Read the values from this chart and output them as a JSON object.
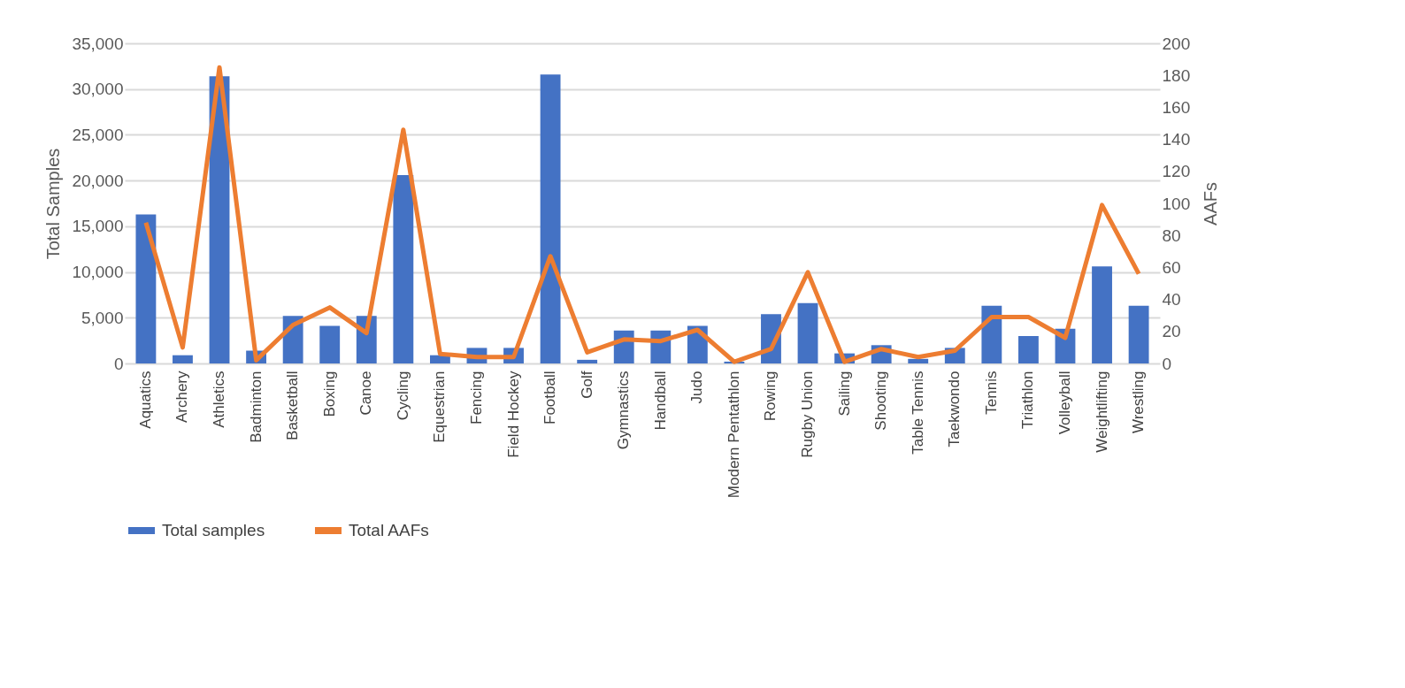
{
  "chart_data": {
    "type": "bar",
    "ylabel": "Total Samples",
    "y2label": "AAFs",
    "categories": [
      "Aquatics",
      "Archery",
      "Athletics",
      "Badminton",
      "Basketball",
      "Boxing",
      "Canoe",
      "Cycling",
      "Equestrian",
      "Fencing",
      "Field Hockey",
      "Football",
      "Golf",
      "Gymnastics",
      "Handball",
      "Judo",
      "Modern Pentathlon",
      "Rowing",
      "Rugby Union",
      "Sailing",
      "Shooting",
      "Table Tennis",
      "Taekwondo",
      "Tennis",
      "Triathlon",
      "Volleyball",
      "Weightlifting",
      "Wrestling"
    ],
    "series": [
      {
        "name": "Total samples",
        "color": "#4472c4",
        "values": [
          16300,
          900,
          31400,
          1400,
          5200,
          4100,
          5200,
          20600,
          900,
          1700,
          1700,
          31600,
          400,
          3600,
          3600,
          4100,
          200,
          5400,
          6600,
          1100,
          2000,
          500,
          1700,
          6300,
          3000,
          3800,
          10600,
          6300
        ]
      },
      {
        "name": "Total AAFs",
        "type": "line",
        "axis": "y2",
        "color": "#ed7d31",
        "values": [
          88,
          10,
          185,
          2,
          24,
          35,
          19,
          146,
          6,
          4,
          4,
          67,
          7,
          15,
          14,
          21,
          1,
          9,
          57,
          1,
          9,
          4,
          8,
          29,
          29,
          16,
          99,
          56
        ]
      }
    ],
    "ylim": [
      0,
      35000
    ],
    "yticks": [
      {
        "value": 0,
        "label": "0"
      },
      {
        "value": 5000,
        "label": "5,000"
      },
      {
        "value": 10000,
        "label": "10,000"
      },
      {
        "value": 15000,
        "label": "15,000"
      },
      {
        "value": 20000,
        "label": "20,000"
      },
      {
        "value": 25000,
        "label": "25,000"
      },
      {
        "value": 30000,
        "label": "30,000"
      },
      {
        "value": 35000,
        "label": "35,000"
      }
    ],
    "y2lim": [
      0,
      200
    ],
    "y2ticks": [
      0,
      20,
      40,
      60,
      80,
      100,
      120,
      140,
      160,
      180,
      200
    ],
    "grid": "y",
    "legend": "bottom",
    "marker": "none"
  }
}
